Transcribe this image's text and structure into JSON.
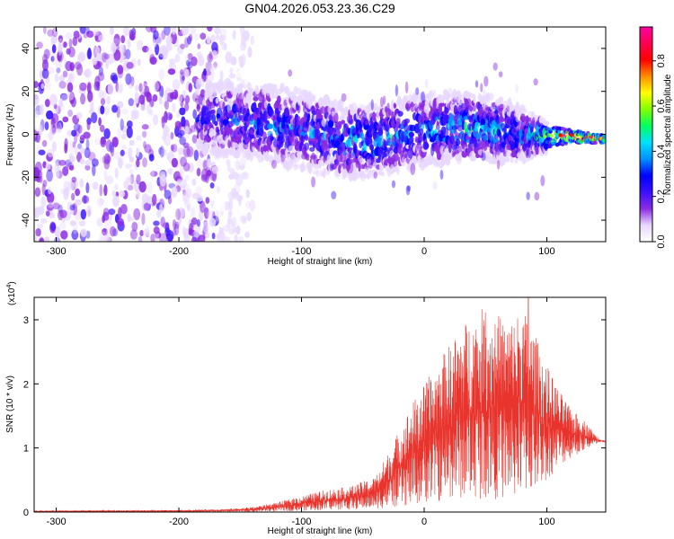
{
  "title": "GN04.2026.053.23.36.C29",
  "chart_data": [
    {
      "type": "heatmap",
      "name": "spectrogram",
      "xlabel": "Height of straight line (km)",
      "ylabel": "Frequency (Hz)",
      "xlim": [
        -318,
        148
      ],
      "ylim": [
        -50,
        50
      ],
      "xticks": [
        -300,
        -200,
        -100,
        0,
        100
      ],
      "xtick_labels": [
        "-300",
        "-200",
        "-100",
        "0",
        "100"
      ],
      "yticks": [
        -40,
        -20,
        0,
        20,
        40
      ],
      "ytick_labels": [
        "-40",
        "-20",
        "0",
        "20",
        "40"
      ],
      "colorbar": {
        "label": "Normalized spectral amplitude",
        "range": [
          0,
          0.95
        ],
        "ticks": [
          0.0,
          0.2,
          0.4,
          0.6,
          0.8
        ],
        "tick_labels": [
          "0.0",
          "0.2",
          "0.4",
          "0.6",
          "0.8"
        ],
        "colors": [
          "#ffffff",
          "#e8d8ff",
          "#8a2be2",
          "#3a10ff",
          "#0000ff",
          "#0090ff",
          "#00e0ff",
          "#00ff60",
          "#80ff00",
          "#ffff00",
          "#ff9000",
          "#ff0000",
          "#ff0050",
          "#ff00a0"
        ]
      },
      "ridge": {
        "x": [
          -180,
          -160,
          -140,
          -120,
          -100,
          -80,
          -60,
          -40,
          -20,
          0,
          20,
          40,
          60,
          80,
          100,
          120,
          140,
          148
        ],
        "center_hz": [
          8,
          7,
          6,
          4,
          2,
          -1,
          -3,
          -3,
          0,
          2,
          3,
          3,
          2,
          0,
          -1,
          -1,
          -2,
          -2
        ],
        "halfwidth_hz": [
          12,
          12,
          12,
          13,
          13,
          13,
          12,
          12,
          12,
          12,
          12,
          11,
          11,
          9,
          5,
          3,
          2,
          2
        ],
        "peak_amplitude": [
          0.25,
          0.3,
          0.35,
          0.35,
          0.32,
          0.35,
          0.38,
          0.42,
          0.38,
          0.35,
          0.4,
          0.42,
          0.4,
          0.35,
          0.55,
          0.85,
          0.9,
          0.9
        ]
      },
      "noise_region_x": [
        -318,
        -150
      ],
      "noise_amplitude": 0.12
    },
    {
      "type": "line",
      "name": "snr",
      "xlabel": "Height of straight line (km)",
      "ylabel": "SNR (10 * v/v)",
      "y_multiplier_label": "(x10",
      "y_multiplier_exp": "4",
      "y_multiplier_close": ")",
      "xlim": [
        -318,
        148
      ],
      "ylim": [
        0,
        3.35
      ],
      "xticks": [
        -300,
        -200,
        -100,
        0,
        100
      ],
      "xtick_labels": [
        "-300",
        "-200",
        "-100",
        "0",
        "100"
      ],
      "yticks": [
        0,
        1,
        2,
        3
      ],
      "ytick_labels": [
        "0",
        "1",
        "2",
        "3"
      ],
      "color": "#e8342c",
      "envelope": {
        "x": [
          -318,
          -200,
          -160,
          -140,
          -120,
          -100,
          -80,
          -60,
          -40,
          -30,
          -20,
          -10,
          0,
          10,
          20,
          30,
          40,
          50,
          60,
          70,
          80,
          90,
          100,
          110,
          120,
          130,
          140,
          148
        ],
        "upper": [
          0.02,
          0.03,
          0.05,
          0.08,
          0.15,
          0.25,
          0.35,
          0.4,
          0.55,
          0.9,
          1.3,
          1.7,
          2.0,
          2.3,
          2.6,
          2.9,
          3.1,
          3.2,
          3.1,
          3.0,
          3.2,
          2.8,
          2.3,
          1.9,
          1.6,
          1.45,
          1.2,
          1.1
        ],
        "lower": [
          0.0,
          0.0,
          0.0,
          0.0,
          0.01,
          0.02,
          0.03,
          0.04,
          0.05,
          0.06,
          0.08,
          0.1,
          0.15,
          0.15,
          0.18,
          0.2,
          0.2,
          0.2,
          0.2,
          0.2,
          0.25,
          0.3,
          0.5,
          0.7,
          0.85,
          0.95,
          1.05,
          1.1
        ]
      },
      "peak": {
        "x": 85,
        "y": 3.35
      }
    }
  ]
}
